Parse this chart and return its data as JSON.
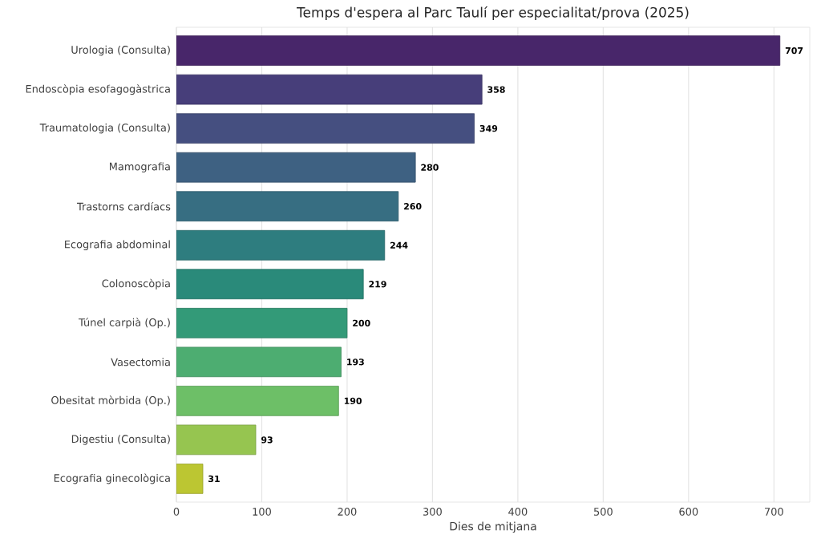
{
  "chart_data": {
    "type": "bar",
    "orientation": "horizontal",
    "title": "Temps d'espera al Parc Taulí per especialitat/prova (2025)",
    "xlabel": "Dies de mitjana",
    "categories": [
      "Urologia (Consulta)",
      "Endoscòpia esofagogàstrica",
      "Traumatologia (Consulta)",
      "Mamografia",
      "Trastorns cardíacs",
      "Ecografia abdominal",
      "Colonoscòpia",
      "Túnel carpià (Op.)",
      "Vasectomia",
      "Obesitat mòrbida (Op.)",
      "Digestiu (Consulta)",
      "Ecografia ginecològica"
    ],
    "values": [
      707,
      358,
      349,
      280,
      260,
      244,
      219,
      200,
      193,
      190,
      93,
      31
    ],
    "colors": [
      "#48266a",
      "#473e7a",
      "#454f80",
      "#3e6182",
      "#376e82",
      "#2e7d7f",
      "#2a8a7a",
      "#339a78",
      "#4dad71",
      "#6dbf67",
      "#96c550",
      "#bcc632"
    ],
    "xlim": [
      0,
      742
    ],
    "xticks": [
      0,
      100,
      200,
      300,
      400,
      500,
      600,
      700
    ],
    "grid": "x",
    "data_labels": true
  }
}
